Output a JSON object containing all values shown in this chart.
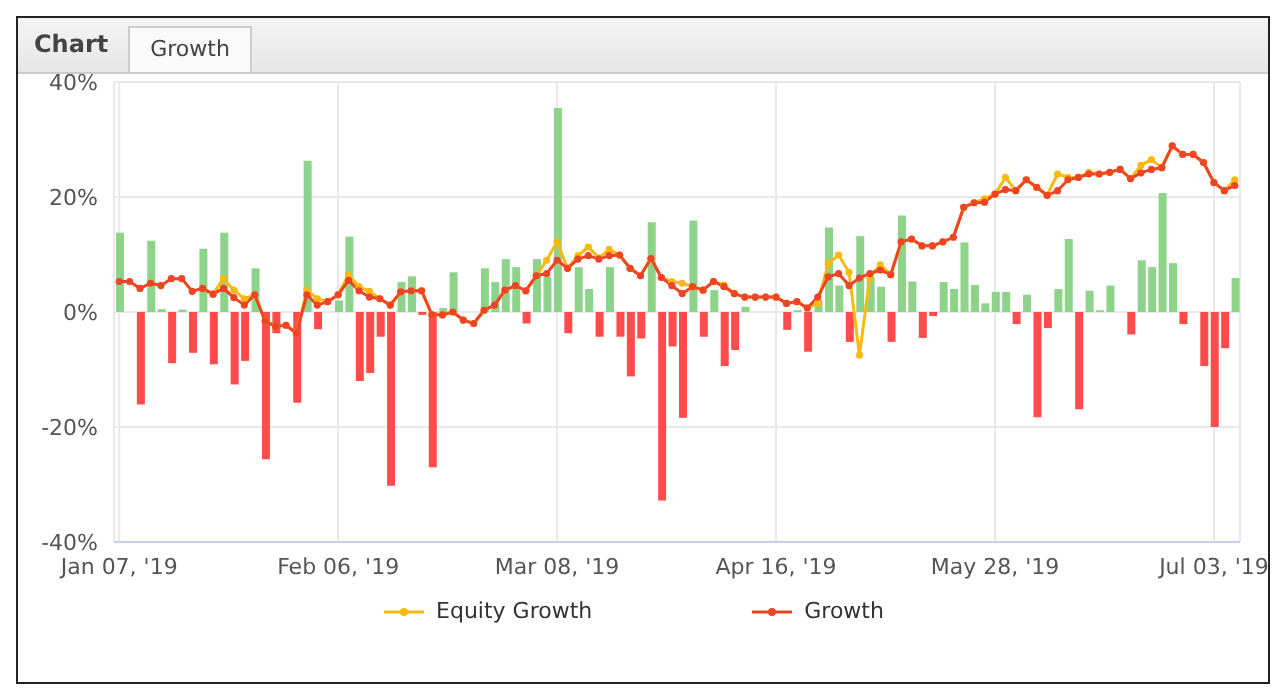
{
  "chart_data": {
    "type": "line",
    "title": "Chart",
    "subtitle": "Growth",
    "categories": [
      "Jan 07, '19",
      null,
      null,
      null,
      null,
      null,
      null,
      null,
      null,
      null,
      null,
      null,
      null,
      null,
      null,
      null,
      null,
      null,
      null,
      null,
      null,
      "Feb 06, '19",
      null,
      null,
      null,
      null,
      null,
      null,
      null,
      null,
      null,
      null,
      null,
      null,
      null,
      null,
      null,
      null,
      null,
      null,
      null,
      null,
      "Mar 08, '19",
      null,
      null,
      null,
      null,
      null,
      null,
      null,
      null,
      null,
      null,
      null,
      null,
      null,
      null,
      null,
      null,
      null,
      null,
      null,
      null,
      "Apr 16, '19",
      null,
      null,
      null,
      null,
      null,
      null,
      null,
      null,
      null,
      null,
      null,
      null,
      null,
      null,
      null,
      null,
      null,
      null,
      null,
      null,
      "May 28, '19",
      null,
      null,
      null,
      null,
      null,
      null,
      null,
      null,
      null,
      null,
      null,
      null,
      null,
      null,
      null,
      null,
      null,
      null,
      null,
      null,
      "Jul 03, '19",
      null,
      null
    ],
    "series": [
      {
        "type": "bar",
        "values": [
          13.8,
          null,
          -16.1,
          12.4,
          0.5,
          -8.9,
          0.4,
          -7.1,
          11,
          -9.1,
          13.8,
          -12.6,
          -8.5,
          7.6,
          -25.6,
          -3.7,
          null,
          -15.8,
          26.3,
          -3.0,
          null,
          2,
          13.1,
          -12,
          -10.6,
          -4.3,
          -30.2,
          5.2,
          6.2,
          -0.5,
          -27,
          0.7,
          6.9,
          null,
          null,
          7.6,
          5.2,
          9.2,
          7.8,
          -2.0,
          9.2,
          6.1,
          35.5,
          -3.7,
          7.8,
          4.0,
          -4.3,
          7.8,
          -4.3,
          -11.2,
          -4.6,
          15.6,
          -32.8,
          -6.0,
          -18.4,
          15.9,
          -4.3,
          3.8,
          -9.4,
          -6.6,
          0.9,
          null,
          null,
          null,
          -3.1,
          0.3,
          -6.9,
          2.1,
          14.7,
          4.6,
          -5.2,
          13.2,
          6.1,
          4.4,
          -5.2,
          16.8,
          5.3,
          -4.5,
          -0.7,
          5.2,
          4.0,
          12.1,
          4.7,
          1.5,
          3.5,
          3.5,
          -2.1,
          3.0,
          -18.3,
          -2.8,
          4.0,
          12.7,
          -16.9,
          3.7,
          0.3,
          4.6,
          null,
          -3.9,
          9.0,
          7.8,
          20.7,
          8.5,
          -2.1,
          null,
          -9.4,
          -20.0,
          -6.3,
          5.9
        ],
        "colors": [
          "#8ed38a",
          null,
          "#ff4b4b",
          "#8ed38a",
          "#8ed38a",
          "#ff4b4b",
          "#8ed38a",
          "#ff4b4b",
          "#8ed38a",
          "#ff4b4b",
          "#8ed38a",
          "#ff4b4b",
          "#ff4b4b",
          "#8ed38a",
          "#ff4b4b",
          "#ff4b4b",
          null,
          "#ff4b4b",
          "#8ed38a",
          "#ff4b4b",
          null,
          "#8ed38a",
          "#8ed38a",
          "#ff4b4b",
          "#ff4b4b",
          "#ff4b4b",
          "#ff4b4b",
          "#8ed38a",
          "#8ed38a",
          "#ff4b4b",
          "#ff4b4b",
          "#8ed38a",
          "#8ed38a",
          null,
          null,
          "#8ed38a",
          "#8ed38a",
          "#8ed38a",
          "#8ed38a",
          "#ff4b4b",
          "#8ed38a",
          "#8ed38a",
          "#8ed38a",
          "#ff4b4b",
          "#8ed38a",
          "#8ed38a",
          "#ff4b4b",
          "#8ed38a",
          "#ff4b4b",
          "#ff4b4b",
          "#ff4b4b",
          "#8ed38a",
          "#ff4b4b",
          "#ff4b4b",
          "#ff4b4b",
          "#8ed38a",
          "#ff4b4b",
          "#8ed38a",
          "#ff4b4b",
          "#ff4b4b",
          "#8ed38a",
          null,
          null,
          null,
          "#ff4b4b",
          "#8ed38a",
          "#ff4b4b",
          "#8ed38a",
          "#8ed38a",
          "#8ed38a",
          "#ff4b4b",
          "#8ed38a",
          "#8ed38a",
          "#8ed38a",
          "#ff4b4b",
          "#8ed38a",
          "#8ed38a",
          "#ff4b4b",
          "#ff4b4b",
          "#8ed38a",
          "#8ed38a",
          "#8ed38a",
          "#8ed38a",
          "#8ed38a",
          "#8ed38a",
          "#8ed38a",
          "#ff4b4b",
          "#8ed38a",
          "#ff4b4b",
          "#ff4b4b",
          "#8ed38a",
          "#8ed38a",
          "#ff4b4b",
          "#8ed38a",
          "#8ed38a",
          "#8ed38a",
          null,
          "#ff4b4b",
          "#8ed38a",
          "#8ed38a",
          "#8ed38a",
          "#8ed38a",
          "#ff4b4b",
          null,
          "#ff4b4b",
          "#ff4b4b",
          "#ff4b4b",
          "#8ed38a"
        ]
      },
      {
        "name": "Equity Growth",
        "color": "#f9b90f",
        "values": [
          null,
          null,
          null,
          null,
          null,
          null,
          null,
          null,
          4.1,
          3.1,
          5.8,
          3.8,
          2.3,
          3.0,
          -1.6,
          -2.5,
          -2.3,
          -3.7,
          3.8,
          2.3,
          1.8,
          3.0,
          6.5,
          4.4,
          3.6,
          2.3,
          1.2,
          3.5,
          3.7,
          3.7,
          -0.5,
          -0.5,
          0,
          -1.4,
          -2.0,
          0.3,
          1.2,
          3.8,
          4.6,
          3.7,
          6.3,
          9.0,
          12.2,
          7.6,
          9.8,
          11.3,
          9.4,
          10.9,
          9.9,
          7.6,
          6.3,
          9.3,
          6.0,
          5.3,
          5.0,
          4.4,
          3.8,
          5.3,
          4.7,
          3.2,
          2.6,
          2.6,
          2.6,
          2.6,
          1.5,
          1.8,
          0.7,
          1.5,
          8.4,
          9.9,
          6.9,
          -7.5,
          6.1,
          8.2,
          6.5,
          12.2,
          12.7,
          11.5,
          11.5,
          12.2,
          13.0,
          18.2,
          19.0,
          19.7,
          20.5,
          23.4,
          21.1,
          23.0,
          21.7,
          20.3,
          24.0,
          23.4,
          23.4,
          24.3,
          24.0,
          24.3,
          24.8,
          23.2,
          25.5,
          26.5,
          25.1,
          28.9,
          27.4,
          27.4,
          26.0,
          22.5,
          21.1,
          23.0
        ]
      },
      {
        "name": "Growth",
        "color": "#ee4426",
        "values": [
          5.3,
          5.3,
          4.1,
          5.0,
          4.6,
          5.8,
          5.8,
          3.6,
          4.1,
          3.1,
          4.1,
          2.5,
          1.2,
          3.0,
          -1.6,
          -2.5,
          -2.3,
          -3.7,
          3.0,
          1.2,
          1.8,
          3.0,
          5.5,
          3.7,
          2.6,
          2.3,
          1.2,
          3.5,
          3.7,
          3.7,
          -0.5,
          -0.5,
          0,
          -1.4,
          -2.0,
          0.3,
          1.2,
          3.8,
          4.6,
          3.7,
          6.3,
          6.7,
          9.0,
          7.6,
          9.2,
          9.8,
          9.2,
          9.8,
          9.9,
          7.6,
          6.3,
          9.3,
          6.0,
          4.6,
          3.2,
          4.4,
          3.8,
          5.3,
          4.4,
          3.2,
          2.6,
          2.6,
          2.6,
          2.6,
          1.5,
          1.8,
          0.7,
          2.6,
          6.1,
          6.7,
          4.6,
          5.9,
          6.7,
          7.3,
          6.5,
          12.2,
          12.7,
          11.5,
          11.5,
          12.2,
          13.0,
          18.2,
          19.0,
          19.1,
          20.5,
          21.3,
          21.1,
          23.0,
          21.7,
          20.3,
          21.1,
          23.0,
          23.4,
          24.0,
          24.0,
          24.3,
          24.8,
          23.2,
          24.2,
          24.8,
          25.1,
          28.9,
          27.4,
          27.4,
          26.0,
          22.5,
          21.1,
          22.0
        ]
      }
    ],
    "ylim": [
      -40,
      40
    ],
    "yticks": [
      {
        "value": -40,
        "label": "-40%"
      },
      {
        "value": -20,
        "label": "-20%"
      },
      {
        "value": 0,
        "label": "0%"
      },
      {
        "value": 20,
        "label": "20%"
      },
      {
        "value": 40,
        "label": "40%"
      }
    ],
    "grid": true,
    "legend": "bottom",
    "marker": "circle",
    "line_style": "solid"
  }
}
